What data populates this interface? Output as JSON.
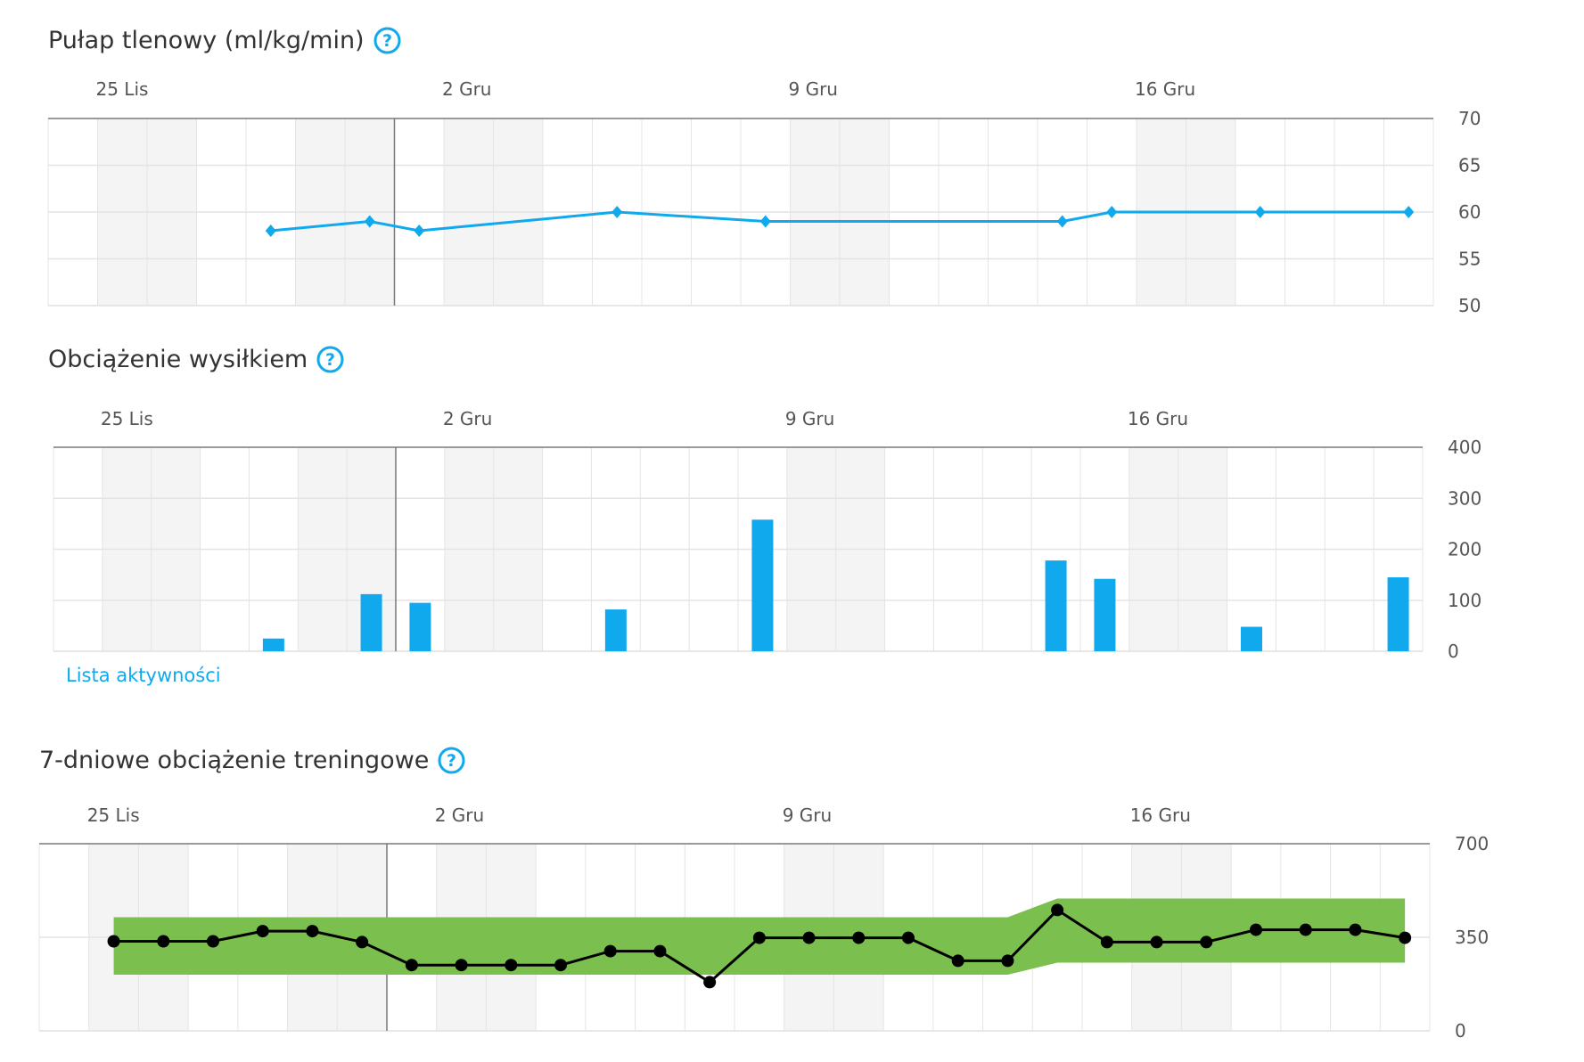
{
  "colors": {
    "accent": "#11a9ed",
    "band": "#7bc04f",
    "line_black": "#000000",
    "weekend_shade": "#f4f4f4",
    "grid": "#e4e4e4"
  },
  "help_icon": "question-mark-circle-icon",
  "vo2": {
    "title": "Pułap tlenowy (ml/kg/min)",
    "chart_data": {
      "type": "line",
      "x_tick_labels": [
        "25 Lis",
        "2 Gru",
        "9 Gru",
        "16 Gru"
      ],
      "y_ticks": [
        70,
        65,
        60,
        55,
        50
      ],
      "ylim": [
        50,
        70
      ],
      "x": [
        "2023-11-28",
        "2023-11-30",
        "2023-12-01",
        "2023-12-05",
        "2023-12-08",
        "2023-12-14",
        "2023-12-15",
        "2023-12-18",
        "2023-12-21"
      ],
      "values": [
        58,
        59,
        58,
        60,
        59,
        59,
        60,
        60,
        60
      ],
      "grid": true
    }
  },
  "load": {
    "title": "Obciążenie wysiłkiem",
    "link_label": "Lista aktywności",
    "chart_data": {
      "type": "bar",
      "x_tick_labels": [
        "25 Lis",
        "2 Gru",
        "9 Gru",
        "16 Gru"
      ],
      "y_ticks": [
        400,
        300,
        200,
        100,
        0
      ],
      "ylim": [
        0,
        400
      ],
      "x": [
        "2023-11-28",
        "2023-11-30",
        "2023-12-01",
        "2023-12-05",
        "2023-12-08",
        "2023-12-14",
        "2023-12-15",
        "2023-12-18",
        "2023-12-21"
      ],
      "values": [
        25,
        112,
        95,
        82,
        258,
        178,
        142,
        48,
        145
      ],
      "grid": true
    }
  },
  "training": {
    "title": "7-dniowe obciążenie treningowe",
    "chart_data": {
      "type": "line",
      "x_tick_labels": [
        "25 Lis",
        "2 Gru",
        "9 Gru",
        "16 Gru"
      ],
      "y_ticks": [
        700,
        350,
        0
      ],
      "ylim": [
        0,
        700
      ],
      "x": [
        "2023-11-25",
        "2023-11-26",
        "2023-11-27",
        "2023-11-28",
        "2023-11-29",
        "2023-11-30",
        "2023-12-01",
        "2023-12-02",
        "2023-12-03",
        "2023-12-04",
        "2023-12-05",
        "2023-12-06",
        "2023-12-07",
        "2023-12-08",
        "2023-12-09",
        "2023-12-10",
        "2023-12-11",
        "2023-12-12",
        "2023-12-13",
        "2023-12-14",
        "2023-12-15",
        "2023-12-16",
        "2023-12-17",
        "2023-12-18",
        "2023-12-19",
        "2023-12-20",
        "2023-12-21"
      ],
      "values": [
        335,
        335,
        335,
        373,
        373,
        332,
        246,
        246,
        246,
        246,
        298,
        298,
        182,
        348,
        348,
        348,
        348,
        262,
        262,
        452,
        332,
        332,
        332,
        378,
        378,
        378,
        348
      ],
      "band": {
        "upper": [
          425,
          425,
          425,
          425,
          425,
          425,
          425,
          425,
          425,
          425,
          425,
          425,
          425,
          425,
          425,
          425,
          425,
          425,
          425,
          495,
          495,
          495,
          495,
          495,
          495,
          495,
          495
        ],
        "lower": [
          210,
          210,
          210,
          210,
          210,
          210,
          210,
          210,
          210,
          210,
          210,
          210,
          210,
          210,
          210,
          210,
          210,
          210,
          210,
          255,
          255,
          255,
          255,
          255,
          255,
          255,
          255
        ]
      },
      "grid": true
    }
  }
}
